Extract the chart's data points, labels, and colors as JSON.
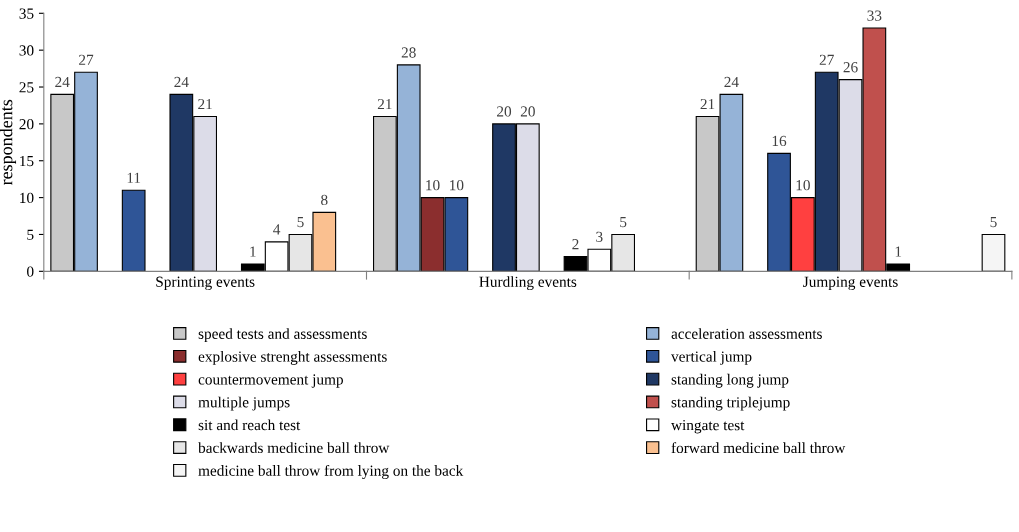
{
  "chart_data": {
    "type": "bar",
    "ylabel": "respondents",
    "categories": [
      "Sprinting events",
      "Hurdling events",
      "Jumping events"
    ],
    "series": [
      {
        "name": "speed tests and assessments",
        "color": "#c8c8c8",
        "values": [
          24,
          21,
          21
        ]
      },
      {
        "name": "acceleration assessments",
        "color": "#95b3d7",
        "values": [
          27,
          28,
          24
        ]
      },
      {
        "name": "explosive strenght assessments",
        "color": "#8b2e2e",
        "values": [
          null,
          10,
          null
        ]
      },
      {
        "name": "vertical jump",
        "color": "#2f5597",
        "values": [
          11,
          10,
          16
        ]
      },
      {
        "name": "countermovement jump",
        "color": "#ff4040",
        "values": [
          null,
          null,
          10
        ]
      },
      {
        "name": "standing long jump",
        "color": "#1f3864",
        "values": [
          24,
          20,
          27
        ]
      },
      {
        "name": "multiple jumps",
        "color": "#dcdce8",
        "values": [
          21,
          20,
          26
        ]
      },
      {
        "name": "standing triplejump",
        "color": "#c0504d",
        "values": [
          null,
          null,
          33
        ]
      },
      {
        "name": "sit and reach test",
        "color": "#000000",
        "values": [
          1,
          2,
          1
        ]
      },
      {
        "name": "wingate test",
        "color": "#ffffff",
        "values": [
          4,
          3,
          null
        ]
      },
      {
        "name": "backwards medicine ball throw",
        "color": "#e6e6e6",
        "values": [
          5,
          5,
          null
        ]
      },
      {
        "name": "forward medicine ball throw",
        "color": "#fac090",
        "values": [
          8,
          null,
          null
        ]
      },
      {
        "name": "medicine ball throw from lying on the back",
        "color": "#f5f5f5",
        "values": [
          null,
          null,
          5
        ]
      }
    ],
    "ylim": [
      0,
      35
    ],
    "yticks": [
      0,
      5,
      10,
      15,
      20,
      25,
      30,
      35
    ],
    "data_labels": true,
    "grid": false,
    "legend": "bottom"
  }
}
